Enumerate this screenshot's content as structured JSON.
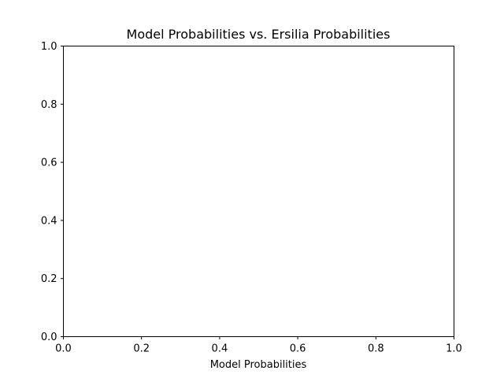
{
  "chart_data": {
    "type": "scatter",
    "title": "Model Probabilities vs. Ersilia Probabilities",
    "xlabel": "Model Probabilities",
    "ylabel": "",
    "xlim": [
      0.0,
      1.0
    ],
    "ylim": [
      0.0,
      1.0
    ],
    "x_ticks": [
      "0.0",
      "0.2",
      "0.4",
      "0.6",
      "0.8",
      "1.0"
    ],
    "y_ticks": [
      "0.0",
      "0.2",
      "0.4",
      "0.6",
      "0.8",
      "1.0"
    ],
    "series": [],
    "grid": false,
    "legend": "none"
  }
}
